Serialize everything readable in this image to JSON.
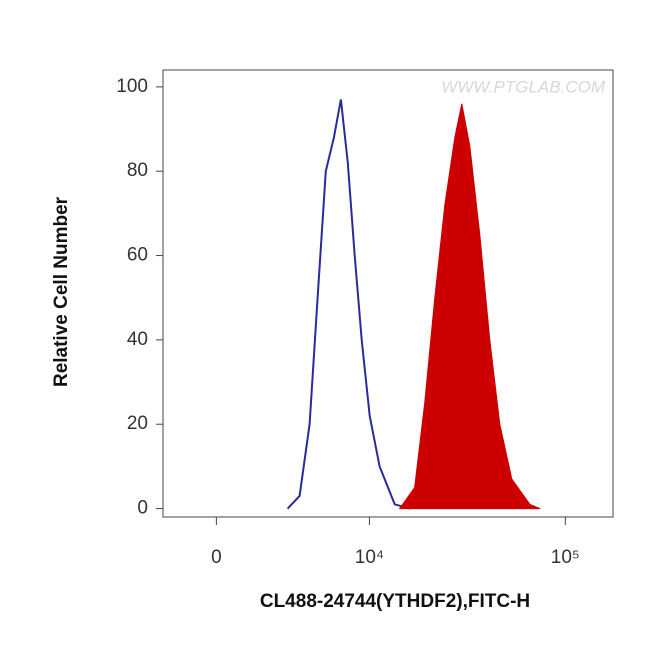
{
  "chart_data": {
    "type": "histogram-overlay",
    "x_label": "CL488-24744(YTHDF2),FITC-H",
    "y_label": "Relative Cell Number",
    "watermark": "WWW.PTGLAB.COM",
    "xscale": "asinh",
    "xlim": [
      -2300,
      174000
    ],
    "xticks": [
      0,
      {
        "value": 10000,
        "label": "10⁴"
      },
      {
        "value": 100000,
        "label": "10⁵"
      }
    ],
    "ylim": [
      -2,
      104
    ],
    "yticks": [
      0,
      20,
      40,
      60,
      80,
      100
    ],
    "series": [
      {
        "color": "#2a2a9a",
        "fill": false,
        "x": [
          3220,
          3916,
          4547,
          5104,
          5713,
          6369,
          6986,
          7630,
          8327,
          9093,
          10034,
          11323,
          13588,
          16235
        ],
        "values": [
          0,
          3,
          20,
          50,
          80,
          88,
          97,
          82,
          60,
          40,
          22,
          10,
          1,
          0
        ]
      },
      {
        "color": "#cc0000",
        "fill": true,
        "x": [
          14424,
          17210,
          19406,
          21845,
          24562,
          27628,
          29997,
          32924,
          37000,
          41564,
          46720,
          53720,
          66200,
          74560
        ],
        "values": [
          0,
          5,
          25,
          50,
          72,
          88,
          96,
          86,
          65,
          40,
          20,
          7,
          1,
          0
        ]
      }
    ]
  }
}
